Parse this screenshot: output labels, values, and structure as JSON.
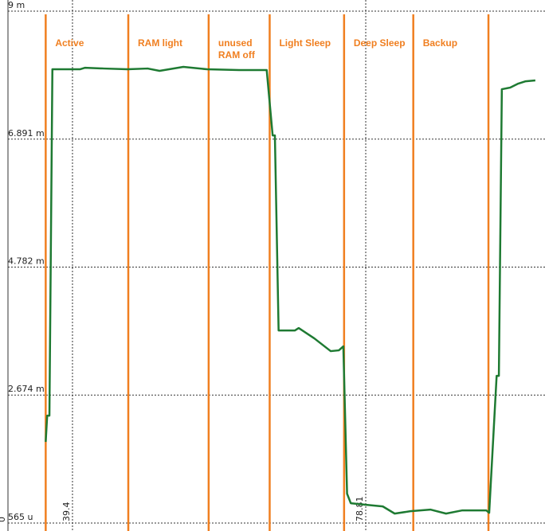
{
  "chart_data": {
    "type": "line",
    "x": [
      35.8,
      36.0,
      36.3,
      36.7,
      40.4,
      41.1,
      43.6,
      46.8,
      49.5,
      51.1,
      54.3,
      57.5,
      61.8,
      65.5,
      66.3,
      66.6,
      67.1,
      69.3,
      69.8,
      71.9,
      73.0,
      74.1,
      75.2,
      75.8,
      76.3,
      76.8,
      78.9,
      81.1,
      82.7,
      84.8,
      87.5,
      89.6,
      91.8,
      95.0,
      95.4,
      96.4,
      96.7,
      97.1,
      98.2,
      99.3,
      100.3,
      101.6
    ],
    "series": [
      {
        "color": "#1e7a32",
        "values": [
          1.902,
          2.335,
          2.335,
          8.042,
          8.042,
          8.068,
          8.055,
          8.042,
          8.055,
          8.016,
          8.082,
          8.042,
          8.029,
          8.029,
          6.953,
          6.953,
          3.739,
          3.739,
          3.778,
          3.608,
          3.503,
          3.398,
          3.411,
          3.476,
          1.049,
          0.892,
          0.865,
          0.839,
          0.721,
          0.76,
          0.787,
          0.721,
          0.774,
          0.774,
          0.734,
          2.991,
          2.991,
          7.714,
          7.74,
          7.806,
          7.845,
          7.859
        ]
      }
    ],
    "ylim": [
      0.434,
      9.184
    ],
    "yticks": [
      {
        "value": 9,
        "label": "9 m"
      },
      {
        "value": 6.891,
        "label": "6.891 m"
      },
      {
        "value": 4.782,
        "label": "4.782 m"
      },
      {
        "value": 2.674,
        "label": "2.674 m"
      },
      {
        "value": 0.565,
        "label": "565 u"
      }
    ],
    "xlim": [
      30.73,
      102.9
    ],
    "xticks": [
      39.4,
      78.81
    ],
    "x_start_label": "0",
    "grid": true,
    "markers": [
      35.8,
      46.9,
      57.7,
      65.9,
      75.9,
      85.2,
      95.3
    ],
    "marker_color": "#f07f20",
    "annotations": [
      "Active",
      "RAM light",
      "unused RAM off",
      "Light Sleep",
      "Deep Sleep",
      "Backup"
    ]
  }
}
